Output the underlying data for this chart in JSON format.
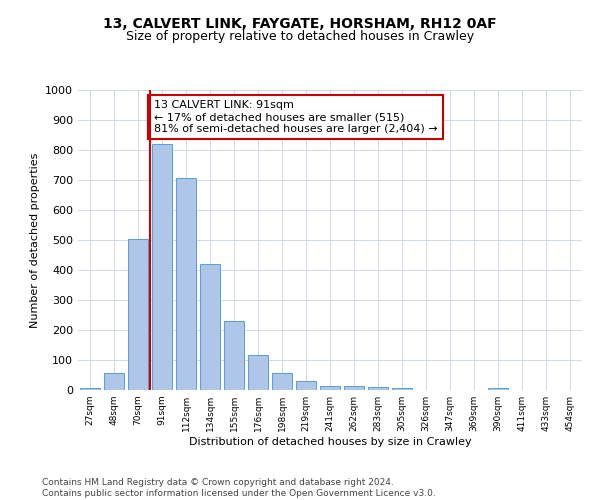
{
  "title1": "13, CALVERT LINK, FAYGATE, HORSHAM, RH12 0AF",
  "title2": "Size of property relative to detached houses in Crawley",
  "xlabel": "Distribution of detached houses by size in Crawley",
  "ylabel": "Number of detached properties",
  "categories": [
    "27sqm",
    "48sqm",
    "70sqm",
    "91sqm",
    "112sqm",
    "134sqm",
    "155sqm",
    "176sqm",
    "198sqm",
    "219sqm",
    "241sqm",
    "262sqm",
    "283sqm",
    "305sqm",
    "326sqm",
    "347sqm",
    "369sqm",
    "390sqm",
    "411sqm",
    "433sqm",
    "454sqm"
  ],
  "values": [
    8,
    57,
    503,
    820,
    708,
    419,
    231,
    117,
    57,
    31,
    14,
    12,
    10,
    6,
    1,
    0,
    0,
    8,
    0,
    0,
    0
  ],
  "bar_color": "#aec6e8",
  "bar_edge_color": "#5a9fd4",
  "vline_color": "#cc0000",
  "annotation_text": "13 CALVERT LINK: 91sqm\n← 17% of detached houses are smaller (515)\n81% of semi-detached houses are larger (2,404) →",
  "annotation_box_color": "#ffffff",
  "annotation_box_edge_color": "#cc0000",
  "ylim": [
    0,
    1000
  ],
  "yticks": [
    0,
    100,
    200,
    300,
    400,
    500,
    600,
    700,
    800,
    900,
    1000
  ],
  "footer_text": "Contains HM Land Registry data © Crown copyright and database right 2024.\nContains public sector information licensed under the Open Government Licence v3.0.",
  "bg_color": "#ffffff",
  "grid_color": "#d0d8e8",
  "title1_fontsize": 10,
  "title2_fontsize": 9,
  "annotation_fontsize": 8,
  "footer_fontsize": 6.5
}
